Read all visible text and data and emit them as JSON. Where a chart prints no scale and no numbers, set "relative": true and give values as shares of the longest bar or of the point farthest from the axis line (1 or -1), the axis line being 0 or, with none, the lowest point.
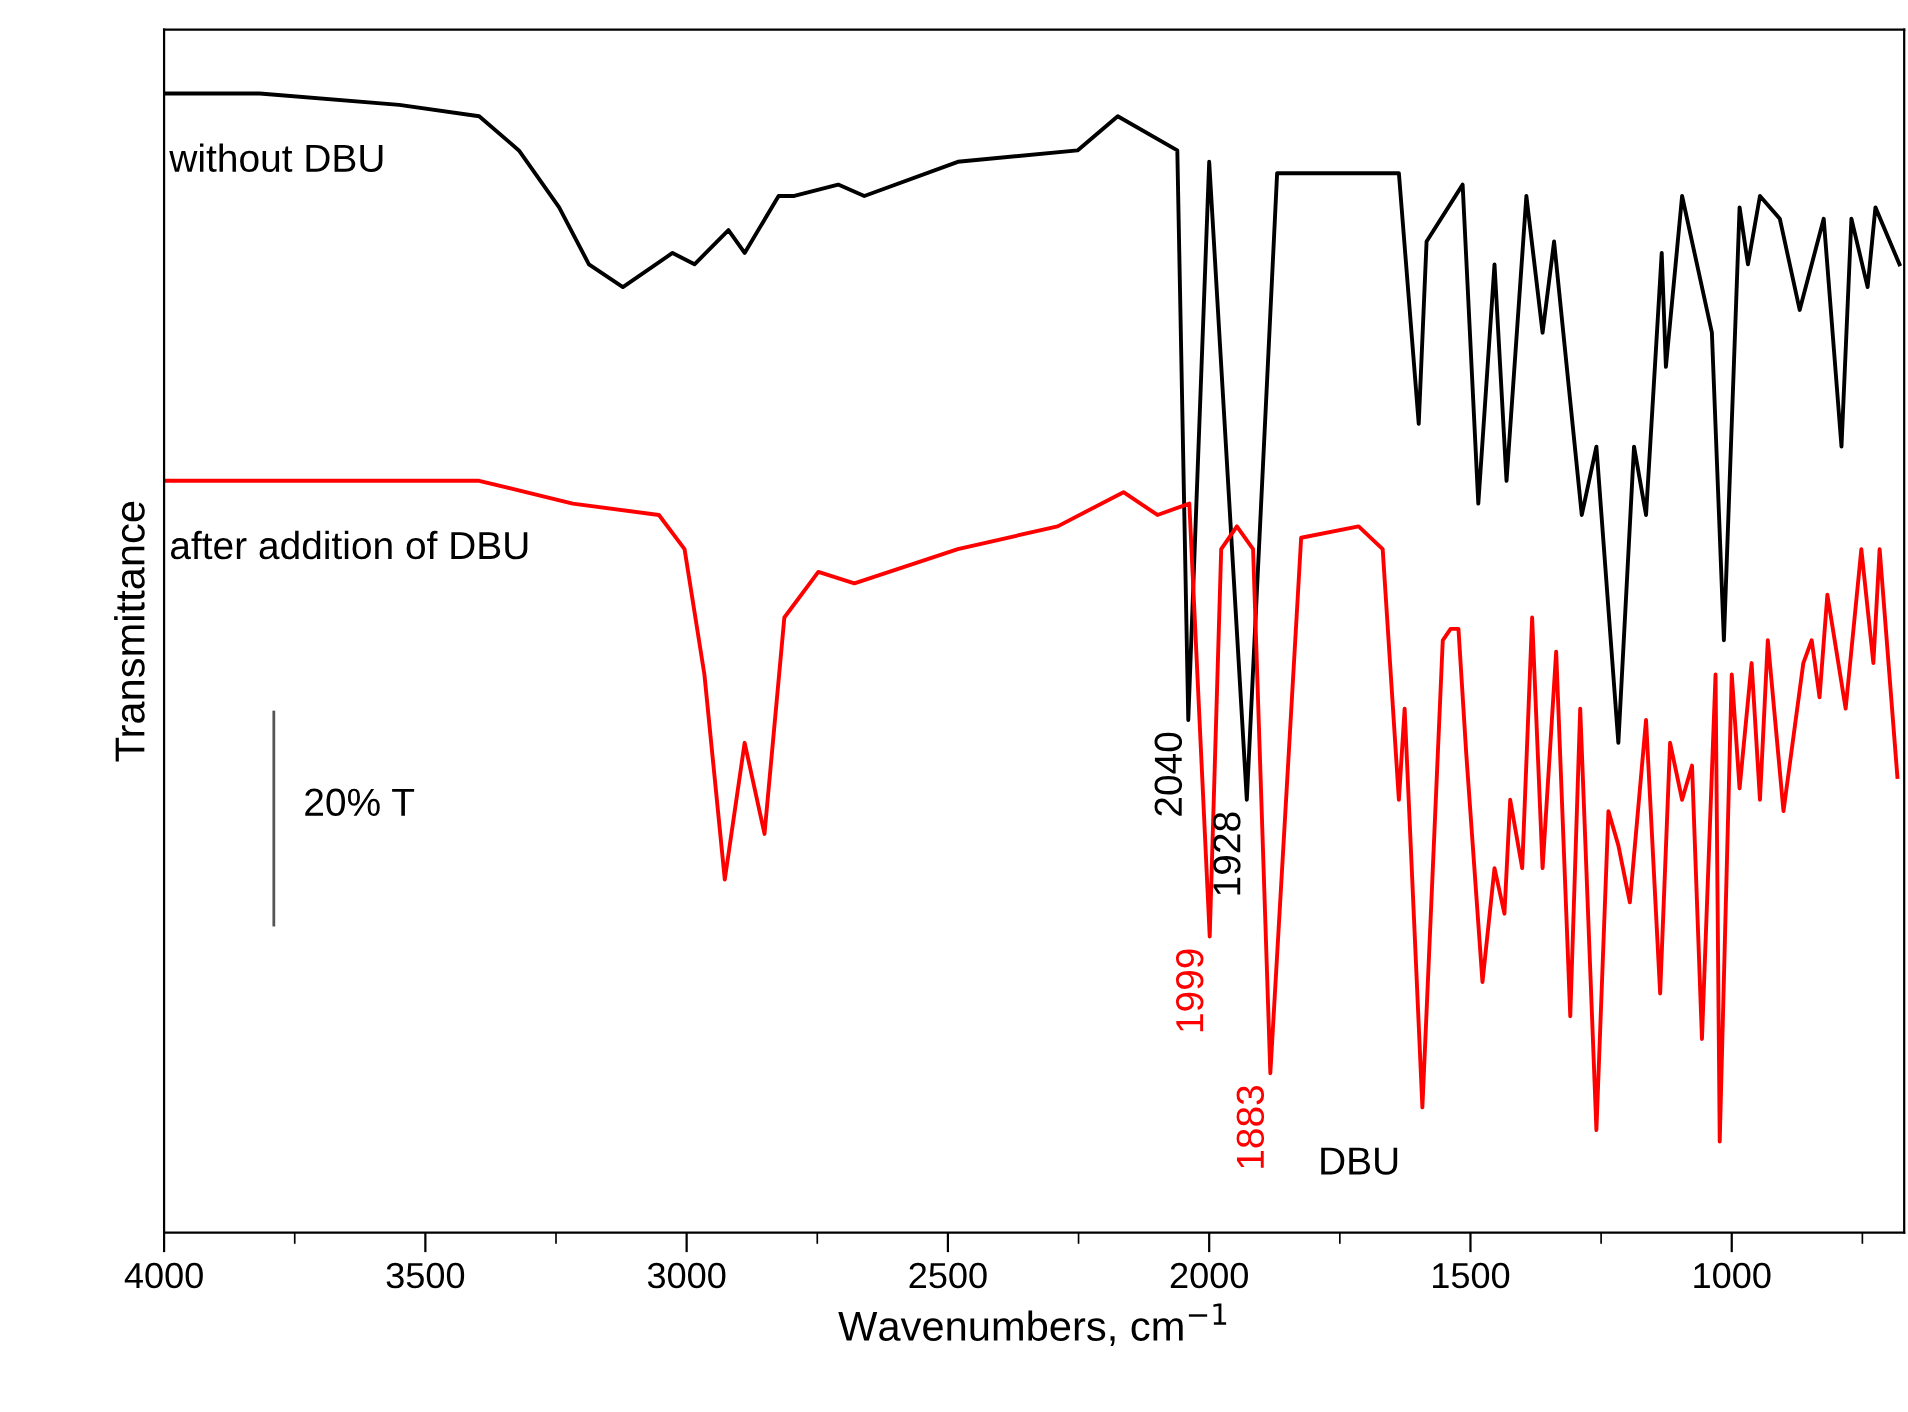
{
  "chart_data": {
    "type": "line",
    "relative": true,
    "xlabel": "Wavenumbers, cm$^{−1}$",
    "ylabel": "Transmittance",
    "xlim": [
      4000,
      670
    ],
    "xticks": [
      4000,
      {
        "value": 3750,
        "label": null
      },
      3500,
      {
        "value": 3250,
        "label": null
      },
      3000,
      {
        "value": 2750,
        "label": null
      },
      2500,
      {
        "value": 2250,
        "label": null
      },
      2000,
      {
        "value": 1750,
        "label": null
      },
      1500,
      {
        "value": 1250,
        "label": null
      },
      1000,
      {
        "value": 750,
        "label": null
      }
    ],
    "legend": false,
    "grid": false,
    "marker": "none",
    "line_style": "solid",
    "series": [
      {
        "name": "without DBU",
        "color": "#000000",
        "x": [
          4000,
          3817,
          3550,
          3397,
          3321,
          3244,
          3187,
          3122,
          3027,
          2985,
          2920,
          2889,
          2824,
          2794,
          2710,
          2660,
          2481,
          2252,
          2175,
          2061,
          2040,
          2000,
          1928,
          1870,
          1637,
          1599,
          1584,
          1515,
          1485,
          1454,
          1431,
          1393,
          1362,
          1340,
          1287,
          1259,
          1217,
          1187,
          1164,
          1134,
          1126,
          1095,
          1038,
          1015,
          985,
          969,
          946,
          908,
          870,
          824,
          790,
          771,
          740,
          725,
          679
        ],
        "values": [
          1.0,
          1.0,
          0.99,
          0.98,
          0.95,
          0.9,
          0.85,
          0.83,
          0.86,
          0.85,
          0.88,
          0.86,
          0.91,
          0.91,
          0.92,
          0.91,
          0.94,
          0.95,
          0.98,
          0.95,
          0.45,
          0.94,
          0.38,
          0.93,
          0.93,
          0.71,
          0.87,
          0.92,
          0.64,
          0.85,
          0.66,
          0.91,
          0.79,
          0.87,
          0.63,
          0.69,
          0.43,
          0.69,
          0.63,
          0.86,
          0.76,
          0.91,
          0.79,
          0.52,
          0.9,
          0.85,
          0.91,
          0.89,
          0.81,
          0.89,
          0.69,
          0.89,
          0.83,
          0.9,
          0.85
        ]
      },
      {
        "name": "after addition of DBU",
        "color": "#ff0000",
        "x": [
          4000,
          3882,
          3550,
          3397,
          3218,
          3053,
          3004,
          2966,
          2927,
          2889,
          2851,
          2813,
          2748,
          2679,
          2481,
          2290,
          2164,
          2099,
          2038,
          1999,
          1977,
          1947,
          1916,
          1883,
          1824,
          1714,
          1668,
          1637,
          1626,
          1592,
          1553,
          1538,
          1523,
          1508,
          1477,
          1454,
          1435,
          1424,
          1401,
          1382,
          1362,
          1336,
          1309,
          1290,
          1259,
          1236,
          1217,
          1195,
          1164,
          1137,
          1118,
          1095,
          1076,
          1057,
          1031,
          1023,
          1000,
          985,
          962,
          946,
          931,
          901,
          863,
          847,
          832,
          817,
          782,
          752,
          729,
          717,
          683
        ],
        "values": [
          0.66,
          0.66,
          0.66,
          0.66,
          0.64,
          0.63,
          0.6,
          0.49,
          0.31,
          0.43,
          0.35,
          0.54,
          0.58,
          0.57,
          0.6,
          0.62,
          0.65,
          0.63,
          0.64,
          0.26,
          0.6,
          0.62,
          0.6,
          0.14,
          0.61,
          0.62,
          0.6,
          0.38,
          0.46,
          0.11,
          0.52,
          0.53,
          0.53,
          0.42,
          0.22,
          0.32,
          0.28,
          0.38,
          0.32,
          0.54,
          0.32,
          0.51,
          0.19,
          0.46,
          0.09,
          0.37,
          0.34,
          0.29,
          0.45,
          0.21,
          0.43,
          0.38,
          0.41,
          0.17,
          0.49,
          0.08,
          0.49,
          0.39,
          0.5,
          0.38,
          0.52,
          0.37,
          0.5,
          0.52,
          0.47,
          0.56,
          0.46,
          0.6,
          0.5,
          0.6,
          0.4
        ]
      },
      {
        "color": "#555555",
        "x": [
          3790,
          3790
        ],
        "values": [
          0.27,
          0.457
        ]
      }
    ],
    "annotations": [
      {
        "text": "2040",
        "x": 2040,
        "y": 0.45
      },
      {
        "text": "1928",
        "x": 1928,
        "y": 0.38
      },
      {
        "text": "1999",
        "x": 1999,
        "y": 0.26
      },
      {
        "text": "1883",
        "x": 1883,
        "y": 0.14
      },
      {
        "text": "DBU",
        "x": 1592,
        "y": 0.11
      },
      "20% T"
    ]
  }
}
